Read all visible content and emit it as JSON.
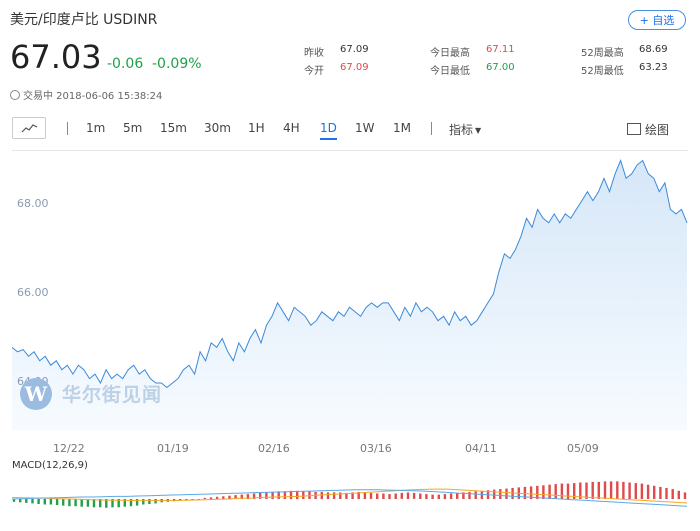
{
  "header": {
    "title": "美元/印度卢比  USDINR",
    "add_button": "+ 自选",
    "price": "67.03",
    "change": "-0.06",
    "change_pct": "-0.09%",
    "status": "交易中 2018-06-06 15:38:24"
  },
  "stats": [
    {
      "label": "昨收",
      "value": "67.09",
      "color": "neutral"
    },
    {
      "label": "今开",
      "value": "67.09",
      "color": "red"
    },
    {
      "label": "今日最高",
      "value": "67.11",
      "color": "red"
    },
    {
      "label": "今日最低",
      "value": "67.00",
      "color": "green"
    },
    {
      "label": "52周最高",
      "value": "68.69",
      "color": "neutral"
    },
    {
      "label": "52周最低",
      "value": "63.23",
      "color": "neutral"
    }
  ],
  "toolbar": {
    "periods": [
      "1m",
      "5m",
      "15m",
      "30m",
      "1H",
      "4H",
      "1D",
      "1W",
      "1M"
    ],
    "active_period": "1D",
    "indicators_label": "指标",
    "draw_label": "绘图"
  },
  "watermark": "华尔街见闻",
  "colors": {
    "accent": "#1a73e8",
    "up": "#e04a4a",
    "down": "#21a04a",
    "line": "#3b8ad9"
  },
  "chart_data": [
    {
      "type": "area",
      "yticks": [
        "68.00",
        "66.00",
        "64.00"
      ],
      "xticks": [
        "12/22",
        "01/19",
        "02/16",
        "03/16",
        "04/11",
        "05/09"
      ],
      "ylim": [
        63.0,
        69.0
      ],
      "values": [
        64.8,
        64.7,
        64.75,
        64.6,
        64.7,
        64.5,
        64.6,
        64.4,
        64.5,
        64.3,
        64.4,
        64.2,
        64.4,
        64.3,
        64.1,
        64.2,
        64.0,
        64.3,
        64.1,
        64.2,
        64.1,
        64.3,
        64.4,
        64.2,
        64.3,
        64.1,
        64.0,
        64.0,
        63.9,
        64.0,
        64.1,
        64.3,
        64.4,
        64.2,
        64.7,
        64.5,
        64.9,
        64.8,
        65.0,
        64.7,
        64.5,
        64.9,
        64.7,
        65.0,
        65.2,
        64.9,
        65.3,
        65.5,
        65.8,
        65.6,
        65.4,
        65.7,
        65.6,
        65.5,
        65.3,
        65.4,
        65.6,
        65.5,
        65.4,
        65.6,
        65.5,
        65.7,
        65.6,
        65.5,
        65.7,
        65.8,
        65.7,
        65.8,
        65.8,
        65.6,
        65.4,
        65.7,
        65.5,
        65.8,
        65.6,
        65.7,
        65.6,
        65.4,
        65.5,
        65.3,
        65.6,
        65.4,
        65.5,
        65.3,
        65.4,
        65.6,
        65.8,
        66.0,
        66.5,
        66.9,
        66.8,
        67.0,
        67.3,
        67.7,
        67.5,
        67.9,
        67.7,
        67.6,
        67.8,
        67.6,
        67.8,
        67.7,
        67.9,
        68.1,
        68.3,
        68.1,
        68.3,
        68.6,
        68.3,
        68.7,
        69.0,
        68.6,
        68.7,
        68.9,
        69.0,
        68.7,
        68.6,
        68.3,
        68.5,
        67.9,
        67.8,
        67.9,
        67.6
      ],
      "close_line": 67.03
    },
    {
      "type": "bar",
      "title": "MACD(12,26,9)",
      "hist": [
        -0.05,
        -0.06,
        -0.07,
        -0.08,
        -0.09,
        -0.1,
        -0.1,
        -0.11,
        -0.12,
        -0.13,
        -0.13,
        -0.14,
        -0.14,
        -0.15,
        -0.15,
        -0.16,
        -0.15,
        -0.15,
        -0.14,
        -0.13,
        -0.12,
        -0.1,
        -0.09,
        -0.08,
        -0.06,
        -0.05,
        -0.04,
        -0.03,
        -0.02,
        -0.01,
        0.0,
        0.02,
        0.03,
        0.04,
        0.05,
        0.06,
        0.07,
        0.08,
        0.09,
        0.1,
        0.11,
        0.12,
        0.13,
        0.14,
        0.14,
        0.15,
        0.15,
        0.14,
        0.14,
        0.13,
        0.13,
        0.12,
        0.12,
        0.12,
        0.11,
        0.12,
        0.13,
        0.12,
        0.11,
        0.1,
        0.1,
        0.09,
        0.1,
        0.11,
        0.12,
        0.11,
        0.1,
        0.09,
        0.08,
        0.08,
        0.09,
        0.1,
        0.11,
        0.12,
        0.13,
        0.14,
        0.15,
        0.16,
        0.17,
        0.18,
        0.19,
        0.2,
        0.21,
        0.22,
        0.23,
        0.24,
        0.25,
        0.26,
        0.27,
        0.28,
        0.28,
        0.29,
        0.3,
        0.3,
        0.31,
        0.31,
        0.32,
        0.32,
        0.32,
        0.31,
        0.3,
        0.29,
        0.28,
        0.26,
        0.24,
        0.22,
        0.2,
        0.18,
        0.15,
        0.12
      ],
      "macd": [
        0.05,
        0.04,
        0.03,
        0.02,
        0.01,
        0.0,
        -0.01,
        -0.02,
        -0.03,
        -0.04,
        -0.04,
        -0.05,
        -0.05,
        -0.05,
        -0.05,
        -0.04,
        -0.03,
        -0.02,
        -0.01,
        0.0,
        0.02,
        0.03,
        0.05,
        0.06,
        0.07,
        0.08,
        0.1,
        0.12,
        0.14,
        0.16,
        0.18,
        0.2,
        0.22,
        0.24,
        0.26,
        0.28,
        0.29,
        0.3,
        0.3,
        0.28,
        0.26,
        0.24,
        0.22,
        0.2,
        0.18,
        0.16,
        0.14,
        0.12,
        0.1,
        0.08,
        0.06,
        0.04,
        0.02,
        0.0,
        -0.02,
        -0.04,
        -0.06,
        -0.08,
        -0.1,
        -0.12
      ],
      "signal": [
        0.0,
        0.01,
        0.02,
        0.03,
        0.04,
        0.05,
        0.06,
        0.06,
        0.07,
        0.08,
        0.08,
        0.09,
        0.1,
        0.11,
        0.12,
        0.13,
        0.14,
        0.15,
        0.16,
        0.17,
        0.18,
        0.19,
        0.2,
        0.21,
        0.22,
        0.23,
        0.24,
        0.25,
        0.26,
        0.27,
        0.28,
        0.28,
        0.28,
        0.27,
        0.26,
        0.25,
        0.24,
        0.22,
        0.2,
        0.18,
        0.16,
        0.14,
        0.12,
        0.1,
        0.08,
        0.06,
        0.04,
        0.02,
        0.0,
        -0.02,
        -0.04,
        -0.06,
        -0.08,
        -0.1,
        -0.12,
        -0.14,
        -0.16,
        -0.18,
        -0.2,
        -0.22
      ]
    }
  ]
}
